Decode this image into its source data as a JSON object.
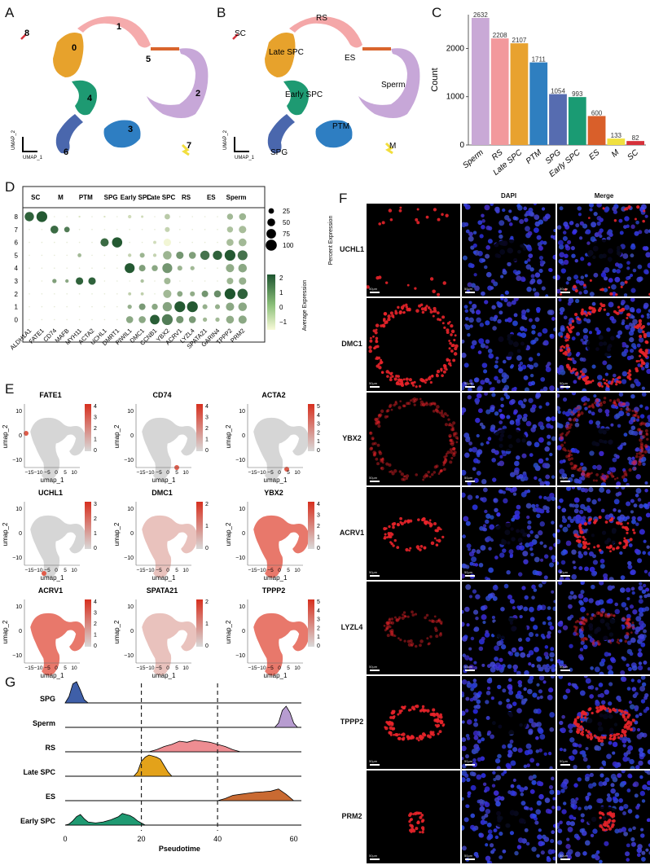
{
  "panels": {
    "A": "A",
    "B": "B",
    "C": "C",
    "D": "D",
    "E": "E",
    "F": "F",
    "G": "G"
  },
  "panelA": {
    "clusters": [
      "0",
      "1",
      "2",
      "3",
      "4",
      "5",
      "6",
      "7",
      "8"
    ],
    "axis_x": "UMAP_1",
    "axis_y": "UMAP_2"
  },
  "panelB": {
    "labels": [
      "SC",
      "RS",
      "Late SPC",
      "ES",
      "Sperm",
      "Early SPC",
      "PTM",
      "SPG",
      "M"
    ],
    "axis_x": "UMAP_1",
    "axis_y": "UMAP_2"
  },
  "chart_data": [
    {
      "type": "bar",
      "panel": "C",
      "categories": [
        "Sperm",
        "RS",
        "Late SPC",
        "PTM",
        "SPG",
        "Early SPC",
        "ES",
        "M",
        "SC"
      ],
      "values": [
        2632,
        2208,
        2107,
        1711,
        1054,
        993,
        600,
        133,
        82
      ],
      "ylabel": "Count",
      "ylim": [
        0,
        2700
      ],
      "yticks": [
        "0",
        "1000",
        "2000"
      ],
      "colors": [
        "#c9a9d6",
        "#f2999c",
        "#e8a22f",
        "#2f7fc0",
        "#566cb0",
        "#1a9b73",
        "#d95f2a",
        "#f0e040",
        "#d6313a"
      ]
    },
    {
      "type": "scatter",
      "panel": "D",
      "groups": [
        "SC",
        "M",
        "PTM",
        "SPG",
        "Early SPC",
        "Late SPC",
        "RS",
        "ES",
        "Sperm"
      ],
      "genes": [
        "ALDH1A1",
        "FATE1",
        "CD74",
        "MAFB",
        "MYH11",
        "ACTA2",
        "UCHL1",
        "DMRT1",
        "PIWIL1",
        "DMC1",
        "CCNB1",
        "YBX2",
        "ACRV1",
        "LYZL4",
        "SPATA21",
        "GARIN4",
        "TPPP2",
        "PRM2"
      ],
      "clusters": [
        "8",
        "7",
        "6",
        "5",
        "4",
        "3",
        "2",
        "1",
        "0"
      ],
      "size_legend_title": "Percent Expression",
      "size_legend": [
        "25",
        "50",
        "75",
        "100"
      ],
      "color_legend_title": "Average Expression",
      "color_legend": [
        "2",
        "1",
        "0",
        "−1"
      ],
      "points": [
        [
          8,
          0,
          70,
          2.2
        ],
        [
          8,
          1,
          95,
          2.4
        ],
        [
          8,
          4,
          3,
          -0.8
        ],
        [
          8,
          6,
          3,
          -0.8
        ],
        [
          8,
          8,
          10,
          -0.6
        ],
        [
          8,
          9,
          5,
          -0.6
        ],
        [
          8,
          11,
          25,
          -0.2
        ],
        [
          8,
          16,
          30,
          0.2
        ],
        [
          8,
          17,
          40,
          0.3
        ],
        [
          7,
          2,
          50,
          2.0
        ],
        [
          7,
          3,
          25,
          1.6
        ],
        [
          7,
          11,
          20,
          -0.4
        ],
        [
          7,
          16,
          30,
          0.0
        ],
        [
          7,
          17,
          45,
          0.1
        ],
        [
          6,
          6,
          55,
          2.0
        ],
        [
          6,
          7,
          85,
          2.4
        ],
        [
          6,
          10,
          8,
          -0.6
        ],
        [
          6,
          11,
          45,
          -1.2
        ],
        [
          6,
          16,
          40,
          0.1
        ],
        [
          6,
          17,
          50,
          0.2
        ],
        [
          5,
          4,
          12,
          0.2
        ],
        [
          5,
          8,
          10,
          -0.4
        ],
        [
          5,
          9,
          20,
          0.3
        ],
        [
          5,
          10,
          10,
          -0.4
        ],
        [
          5,
          11,
          60,
          0.3
        ],
        [
          5,
          12,
          45,
          1.0
        ],
        [
          5,
          13,
          40,
          0.8
        ],
        [
          5,
          14,
          70,
          1.8
        ],
        [
          5,
          15,
          70,
          2.2
        ],
        [
          5,
          16,
          95,
          2.4
        ],
        [
          5,
          17,
          80,
          1.8
        ],
        [
          4,
          8,
          80,
          2.4
        ],
        [
          4,
          9,
          35,
          0.8
        ],
        [
          4,
          10,
          30,
          0.6
        ],
        [
          4,
          11,
          80,
          1.0
        ],
        [
          4,
          12,
          20,
          0.3
        ],
        [
          4,
          13,
          15,
          0.2
        ],
        [
          4,
          16,
          55,
          0.5
        ],
        [
          4,
          17,
          60,
          0.6
        ],
        [
          3,
          2,
          15,
          0.8
        ],
        [
          3,
          3,
          10,
          0.6
        ],
        [
          3,
          4,
          45,
          2.2
        ],
        [
          3,
          5,
          45,
          2.2
        ],
        [
          3,
          9,
          10,
          0.0
        ],
        [
          3,
          11,
          35,
          0.2
        ],
        [
          3,
          16,
          35,
          0.3
        ],
        [
          3,
          17,
          45,
          0.4
        ],
        [
          2,
          8,
          8,
          -0.3
        ],
        [
          2,
          9,
          8,
          -0.3
        ],
        [
          2,
          11,
          55,
          0.2
        ],
        [
          2,
          12,
          25,
          0.6
        ],
        [
          2,
          13,
          20,
          0.5
        ],
        [
          2,
          14,
          35,
          1.0
        ],
        [
          2,
          15,
          40,
          1.2
        ],
        [
          2,
          16,
          95,
          2.5
        ],
        [
          2,
          17,
          85,
          2.2
        ],
        [
          1,
          8,
          15,
          0.4
        ],
        [
          1,
          9,
          35,
          0.9
        ],
        [
          1,
          10,
          30,
          0.6
        ],
        [
          1,
          11,
          70,
          0.7
        ],
        [
          1,
          12,
          95,
          2.4
        ],
        [
          1,
          13,
          95,
          2.4
        ],
        [
          1,
          14,
          20,
          0.4
        ],
        [
          1,
          15,
          20,
          0.4
        ],
        [
          1,
          16,
          55,
          0.6
        ],
        [
          1,
          17,
          60,
          0.6
        ],
        [
          0,
          8,
          40,
          0.6
        ],
        [
          0,
          9,
          40,
          0.6
        ],
        [
          0,
          10,
          75,
          2.3
        ],
        [
          0,
          11,
          95,
          1.6
        ],
        [
          0,
          12,
          45,
          1.0
        ],
        [
          0,
          13,
          40,
          0.9
        ],
        [
          0,
          14,
          15,
          0.2
        ],
        [
          0,
          15,
          15,
          0.2
        ],
        [
          0,
          16,
          50,
          0.5
        ],
        [
          0,
          17,
          55,
          0.6
        ]
      ]
    },
    {
      "type": "scatter",
      "panel": "E",
      "plots": [
        {
          "title": "FATE1",
          "scale": [
            "4",
            "3",
            "2",
            "1",
            "0"
          ]
        },
        {
          "title": "CD74",
          "scale": [
            "4",
            "3",
            "2",
            "1",
            "0"
          ]
        },
        {
          "title": "ACTA2",
          "scale": [
            "5",
            "4",
            "3",
            "2",
            "1",
            "0"
          ]
        },
        {
          "title": "UCHL1",
          "scale": [
            "3",
            "2",
            "1",
            "0"
          ]
        },
        {
          "title": "DMC1",
          "scale": [
            "2",
            "1",
            "0"
          ]
        },
        {
          "title": "YBX2",
          "scale": [
            "4",
            "3",
            "2",
            "1",
            "0"
          ]
        },
        {
          "title": "ACRV1",
          "scale": [
            "4",
            "3",
            "2",
            "1",
            "0"
          ]
        },
        {
          "title": "SPATA21",
          "scale": [
            "2",
            "1",
            "0"
          ]
        },
        {
          "title": "TPPP2",
          "scale": [
            "5",
            "4",
            "3",
            "2",
            "1",
            "0"
          ]
        }
      ],
      "xlabel": "umap_1",
      "ylabel": "umap_2",
      "xticks": [
        "−15",
        "−10",
        "−5",
        "0",
        "5",
        "10"
      ],
      "yticks": [
        "10",
        "0",
        "−10"
      ]
    },
    {
      "type": "area",
      "panel": "G",
      "xlabel": "Pseudotime",
      "xlim": [
        0,
        62
      ],
      "xticks": [
        "0",
        "20",
        "40",
        "60"
      ],
      "vlines": [
        20,
        40
      ],
      "series": [
        {
          "name": "SPG",
          "color": "#3f5fa8",
          "x": [
            0,
            1,
            2,
            3,
            4,
            5,
            6
          ],
          "y": [
            0,
            0.3,
            0.9,
            1.0,
            0.6,
            0.15,
            0
          ]
        },
        {
          "name": "Sperm",
          "color": "#b79cd0",
          "x": [
            55,
            56,
            57,
            58,
            59,
            60,
            61
          ],
          "y": [
            0,
            0.2,
            0.8,
            1.0,
            0.7,
            0.2,
            0
          ]
        },
        {
          "name": "RS",
          "color": "#ee8d92",
          "x": [
            22,
            24,
            26,
            28,
            30,
            32,
            34,
            36,
            38,
            40,
            42,
            44,
            46
          ],
          "y": [
            0,
            0.1,
            0.25,
            0.35,
            0.5,
            0.45,
            0.55,
            0.5,
            0.45,
            0.35,
            0.25,
            0.1,
            0
          ]
        },
        {
          "name": "Late SPC",
          "color": "#e3a21a",
          "x": [
            18,
            19,
            20,
            21,
            22,
            23,
            24,
            25,
            26,
            27,
            28
          ],
          "y": [
            0,
            0.2,
            0.7,
            0.9,
            1.0,
            0.95,
            0.9,
            0.8,
            0.5,
            0.2,
            0
          ]
        },
        {
          "name": "ES",
          "color": "#c96a32",
          "x": [
            40,
            42,
            44,
            46,
            48,
            50,
            52,
            54,
            56,
            58,
            60
          ],
          "y": [
            0,
            0.1,
            0.25,
            0.3,
            0.35,
            0.4,
            0.42,
            0.45,
            0.55,
            0.3,
            0
          ]
        },
        {
          "name": "Early SPC",
          "color": "#1f9a72",
          "x": [
            0,
            1,
            2,
            3,
            4,
            5,
            6,
            8,
            10,
            12,
            14,
            15,
            16,
            17,
            18,
            19,
            20,
            21
          ],
          "y": [
            0,
            0.05,
            0.2,
            0.4,
            0.5,
            0.3,
            0.15,
            0.1,
            0.15,
            0.25,
            0.4,
            0.55,
            0.5,
            0.45,
            0.35,
            0.2,
            0.1,
            0
          ]
        }
      ]
    }
  ],
  "panelF": {
    "columns": [
      "",
      "DAPI",
      "Merge"
    ],
    "rows": [
      "UCHL1",
      "DMC1",
      "YBX2",
      "ACRV1",
      "LYZL4",
      "TPPP2",
      "PRM2"
    ],
    "scale_label": "50μm"
  }
}
